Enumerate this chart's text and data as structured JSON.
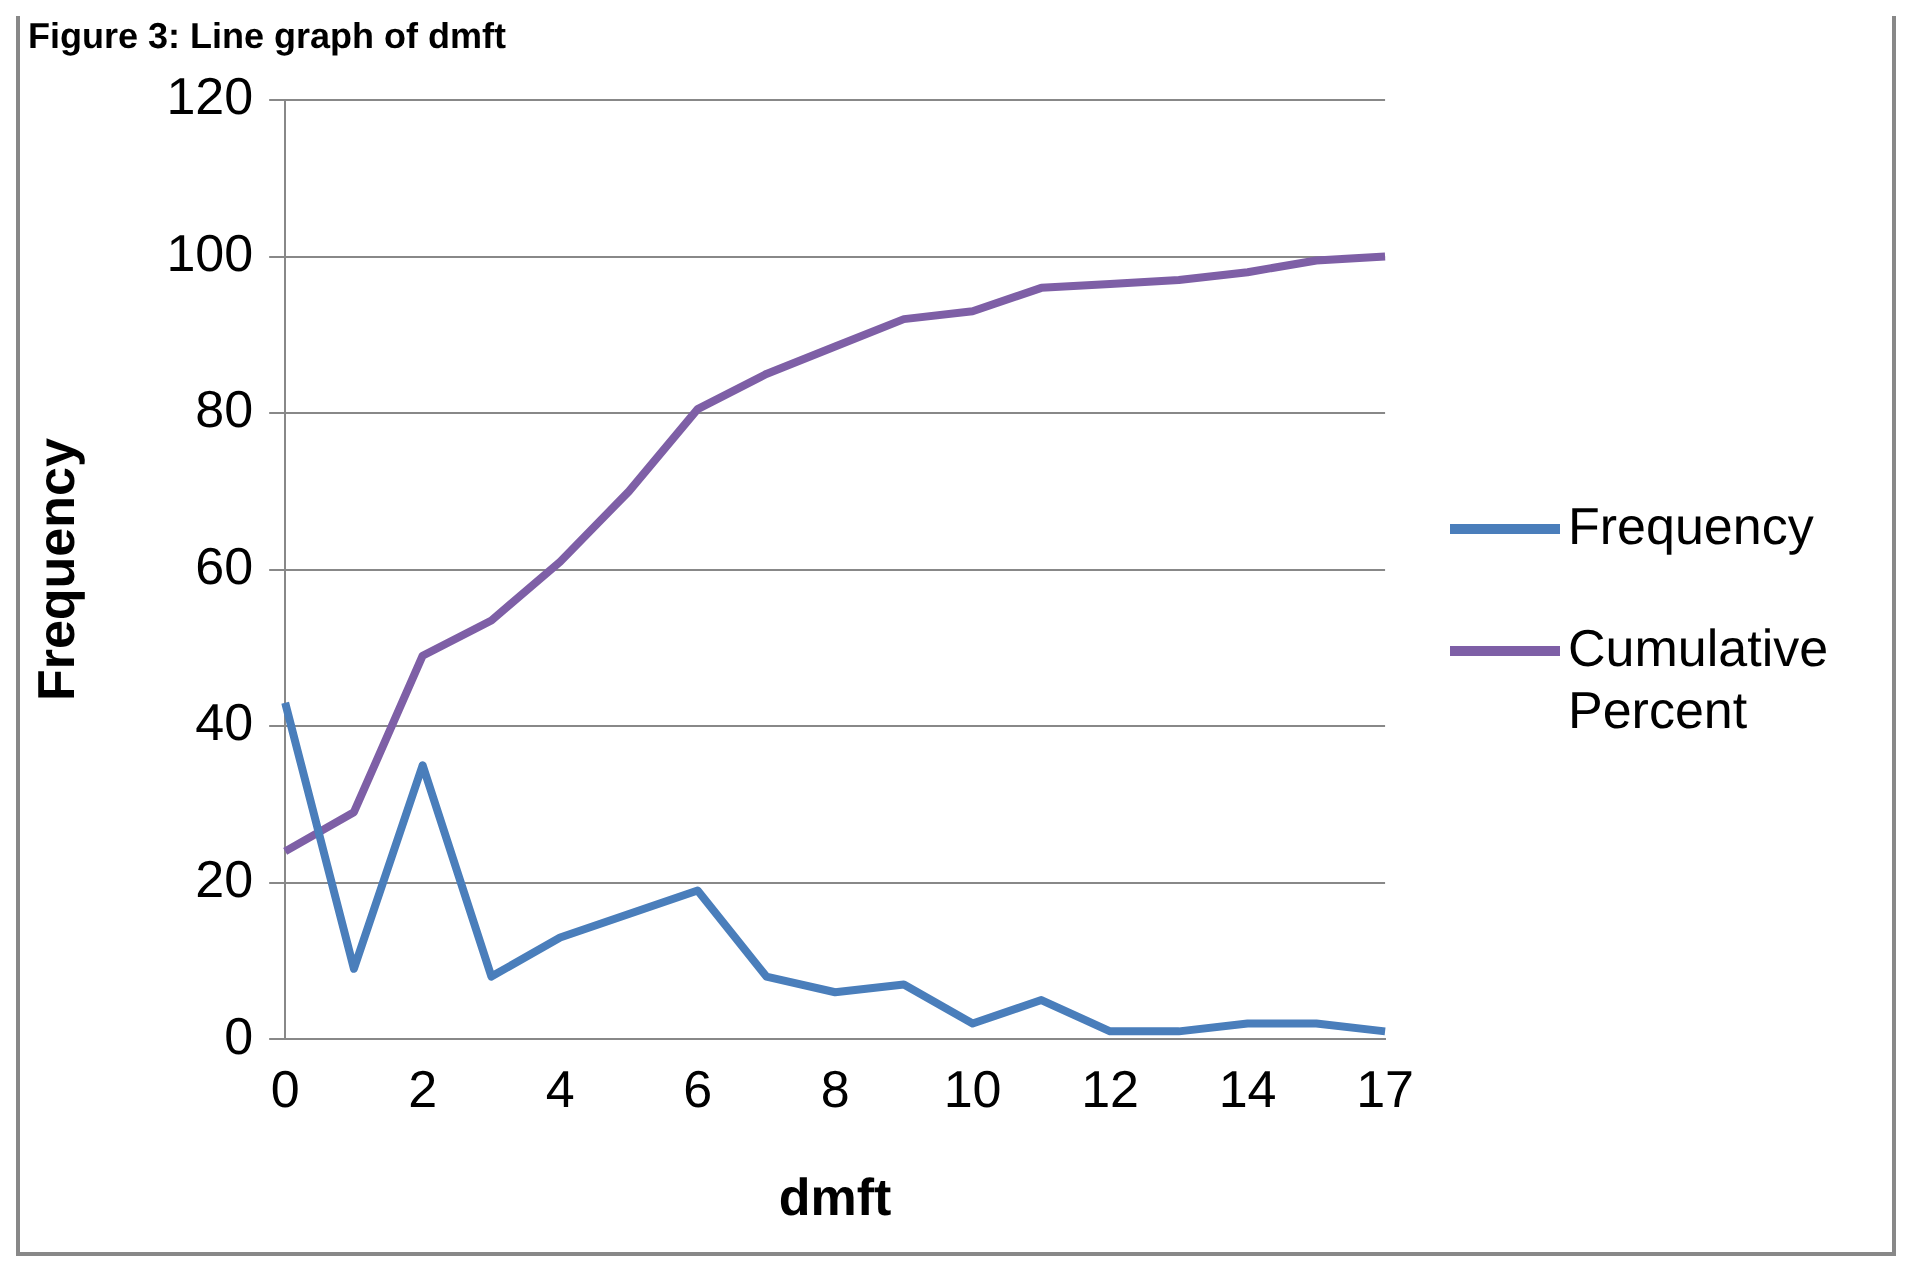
{
  "chart_data": {
    "type": "line",
    "title": "Figure 3: Line graph of dmft",
    "xlabel": "dmft",
    "ylabel": "Frequency",
    "categories": [
      "0",
      null,
      "2",
      null,
      "4",
      null,
      "6",
      null,
      "8",
      null,
      "10",
      null,
      "12",
      null,
      "14",
      null,
      "17"
    ],
    "series": [
      {
        "name": "Frequency",
        "color": "#4a7ebb",
        "values": [
          43,
          9,
          35,
          8,
          13,
          16,
          19,
          8,
          6,
          7,
          2,
          5,
          1,
          1,
          2,
          2,
          1
        ]
      },
      {
        "name": "Cumulative Percent",
        "color": "#7e5fa6",
        "values": [
          24,
          29,
          49,
          53.5,
          61,
          70,
          80.5,
          85,
          88.5,
          92,
          93,
          96,
          96.5,
          97,
          98,
          99.5,
          100
        ]
      }
    ],
    "ylim": [
      0,
      120
    ],
    "yticks": [
      0,
      20,
      40,
      60,
      80,
      100,
      120
    ],
    "grid": "y",
    "legend": "right",
    "marker": "none",
    "line_style": "solid"
  }
}
